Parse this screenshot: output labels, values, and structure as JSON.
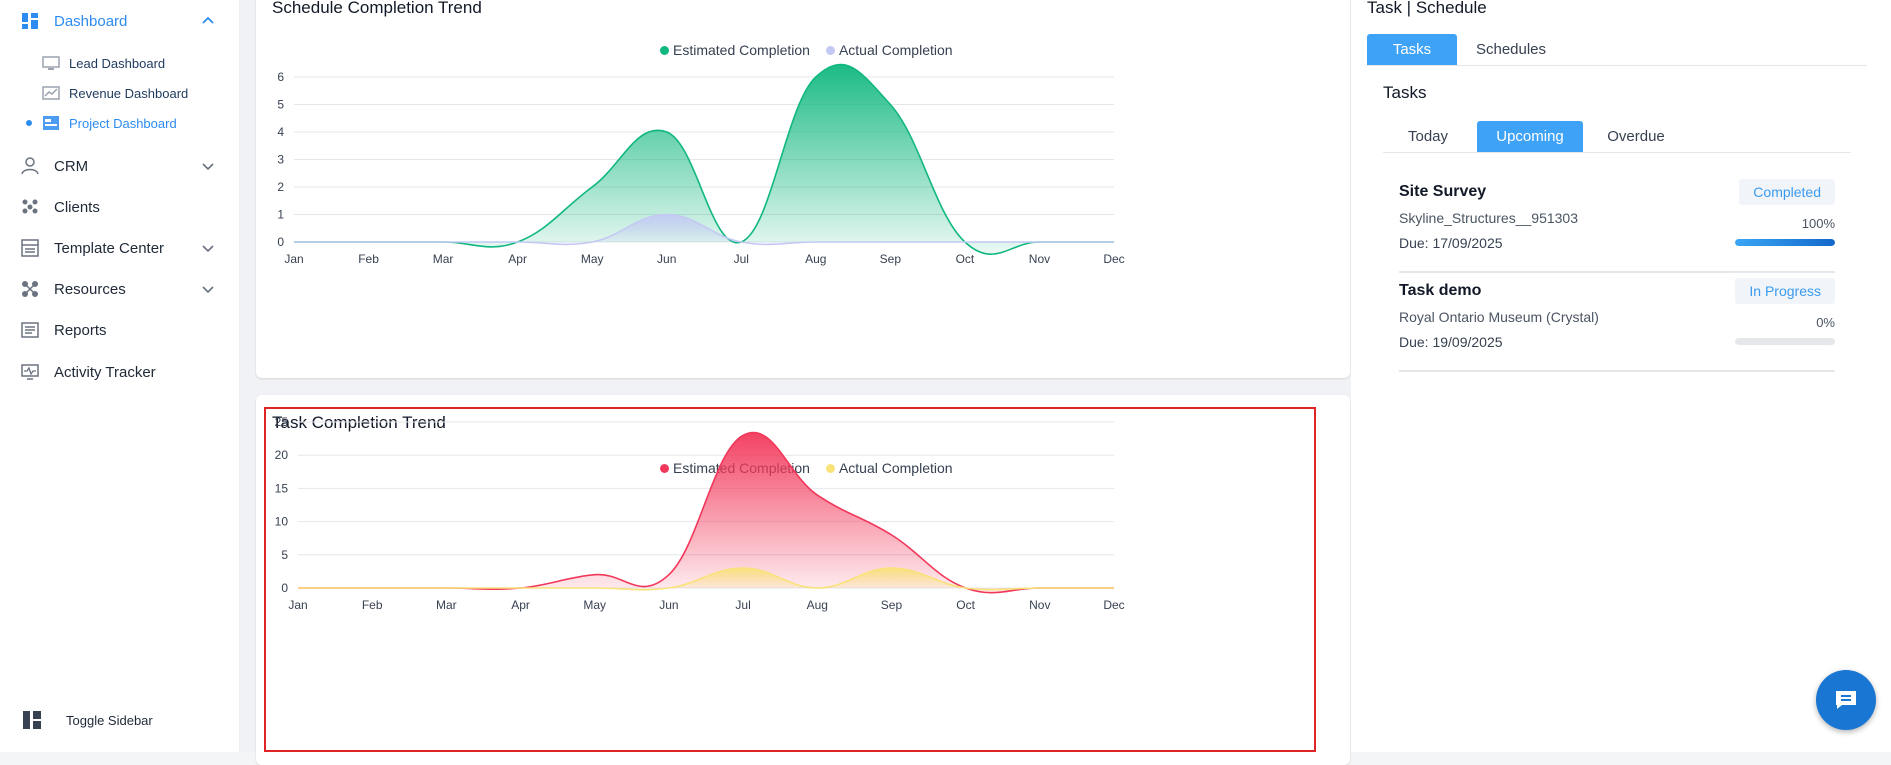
{
  "sidebar": {
    "dashboard_label": "Dashboard",
    "sub_items": [
      {
        "label": "Lead Dashboard"
      },
      {
        "label": "Revenue Dashboard"
      },
      {
        "label": "Project Dashboard",
        "active": true
      }
    ],
    "items": [
      {
        "label": "CRM",
        "icon": "crm-icon",
        "has_chevron": true
      },
      {
        "label": "Clients",
        "icon": "clients-icon",
        "has_chevron": false
      },
      {
        "label": "Template Center",
        "icon": "template-icon",
        "has_chevron": true
      },
      {
        "label": "Resources",
        "icon": "resources-icon",
        "has_chevron": true
      },
      {
        "label": "Reports",
        "icon": "reports-icon",
        "has_chevron": false
      },
      {
        "label": "Activity Tracker",
        "icon": "activity-icon",
        "has_chevron": false
      }
    ],
    "toggle_label": "Toggle Sidebar"
  },
  "charts": {
    "schedule": {
      "title": "Schedule Completion Trend",
      "legend": [
        "Estimated Completion",
        "Actual Completion"
      ]
    },
    "task": {
      "title": "Task Completion Trend",
      "legend": [
        "Estimated Completion",
        "Actual Completion"
      ]
    }
  },
  "chart_data": [
    {
      "type": "area",
      "title": "Schedule Completion Trend",
      "categories": [
        "Jan",
        "Feb",
        "Mar",
        "Apr",
        "May",
        "Jun",
        "Jul",
        "Aug",
        "Sep",
        "Oct",
        "Nov",
        "Dec"
      ],
      "ylim": [
        0,
        6
      ],
      "yticks": [
        0,
        1,
        2,
        3,
        4,
        5,
        6
      ],
      "series": [
        {
          "name": "Estimated Completion",
          "color": "#10b77f",
          "values": [
            0,
            0,
            0,
            0,
            2,
            4,
            0,
            6,
            5,
            0,
            0,
            0
          ]
        },
        {
          "name": "Actual Completion",
          "color": "#c4c9f4",
          "values": [
            0,
            0,
            0,
            0,
            0,
            1,
            0,
            0,
            0,
            0,
            0,
            0
          ]
        }
      ],
      "legend": "top-center",
      "grid": true
    },
    {
      "type": "area",
      "title": "Task Completion Trend",
      "categories": [
        "Jan",
        "Feb",
        "Mar",
        "Apr",
        "May",
        "Jun",
        "Jul",
        "Aug",
        "Sep",
        "Oct",
        "Nov",
        "Dec"
      ],
      "ylim": [
        0,
        25
      ],
      "yticks": [
        0,
        5,
        10,
        15,
        20,
        25
      ],
      "series": [
        {
          "name": "Estimated Completion",
          "color": "#f2385a",
          "values": [
            0,
            0,
            0,
            0,
            2,
            2,
            23,
            14,
            8,
            0,
            0,
            0
          ]
        },
        {
          "name": "Actual Completion",
          "color": "#f9e27a",
          "values": [
            0,
            0,
            0,
            0,
            0,
            0,
            3,
            0,
            3,
            0,
            0,
            0
          ]
        }
      ],
      "legend": "top-center",
      "grid": true
    }
  ],
  "right_panel": {
    "title": "Task | Schedule",
    "tabs": [
      "Tasks",
      "Schedules"
    ],
    "section_title": "Tasks",
    "subtabs": [
      "Today",
      "Upcoming",
      "Overdue"
    ],
    "tasks": [
      {
        "name": "Site Survey",
        "status": "Completed",
        "client": "Skyline_Structures__951303",
        "due": "Due: 17/09/2025",
        "progress_label": "100%",
        "progress": 1.0
      },
      {
        "name": "Task demo",
        "status": "In Progress",
        "client": "Royal Ontario Museum (Crystal)",
        "due": "Due: 19/09/2025",
        "progress_label": "0%",
        "progress": 0.0
      }
    ]
  },
  "colors": {
    "accent": "#3ea2f6",
    "schedule_est": "#10b77f",
    "schedule_act": "#c4c9f4",
    "task_est": "#f2385a",
    "task_act": "#f9e27a"
  }
}
